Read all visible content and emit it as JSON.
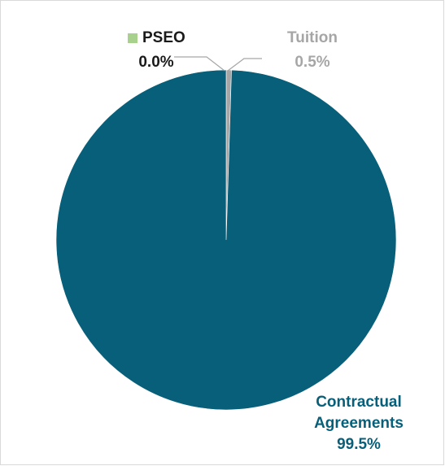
{
  "chart_data": {
    "type": "pie",
    "title": "",
    "slices": [
      {
        "label": "Contractual Agreements",
        "label_lines": [
          "Contractual",
          "Agreements"
        ],
        "value": 99.5,
        "value_label": "99.5%",
        "color": "#085F79"
      },
      {
        "label": "Tuition",
        "label_lines": [
          "Tuition"
        ],
        "value": 0.5,
        "value_label": "0.5%",
        "color": "#A6A6A6"
      },
      {
        "label": "PSEO",
        "label_lines": [
          "PSEO"
        ],
        "value": 0.0,
        "value_label": "0.0%",
        "color": "#A9D18E"
      }
    ],
    "legend": "none",
    "label_colors": {
      "Contractual Agreements": "#085F79",
      "Tuition": "#A6A6A6",
      "PSEO": "#1a1a1a"
    }
  }
}
